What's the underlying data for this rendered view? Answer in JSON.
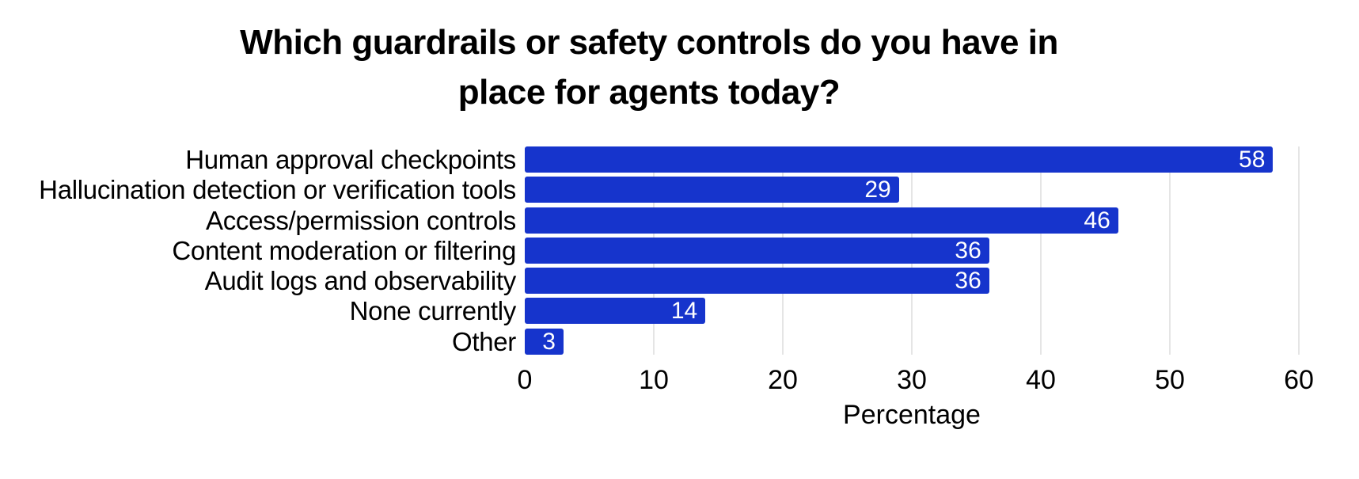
{
  "title_lines": [
    "Which guardrails or safety controls do you have in",
    "place for agents today?"
  ],
  "colors": {
    "bar": "#1634CC",
    "value_label": "#ffffff",
    "gridline": "#e5e5e5",
    "text": "#000000",
    "background": "#ffffff"
  },
  "chart_data": {
    "type": "bar",
    "orientation": "horizontal",
    "title": "Which guardrails or safety controls do you have in place for agents today?",
    "categories": [
      "Human approval checkpoints",
      "Hallucination detection or verification tools",
      "Access/permission controls",
      "Content moderation or filtering",
      "Audit logs and observability",
      "None currently",
      "Other"
    ],
    "values": [
      58,
      29,
      46,
      36,
      36,
      14,
      3
    ],
    "value_labels": [
      "58",
      "29",
      "46",
      "36",
      "36",
      "14",
      "3"
    ],
    "xlabel": "Percentage",
    "ylabel": "",
    "xlim": [
      0,
      60
    ],
    "xticks": [
      0,
      10,
      20,
      30,
      40,
      50,
      60
    ],
    "grid": true,
    "legend": false,
    "bar_color": "#1634CC"
  }
}
